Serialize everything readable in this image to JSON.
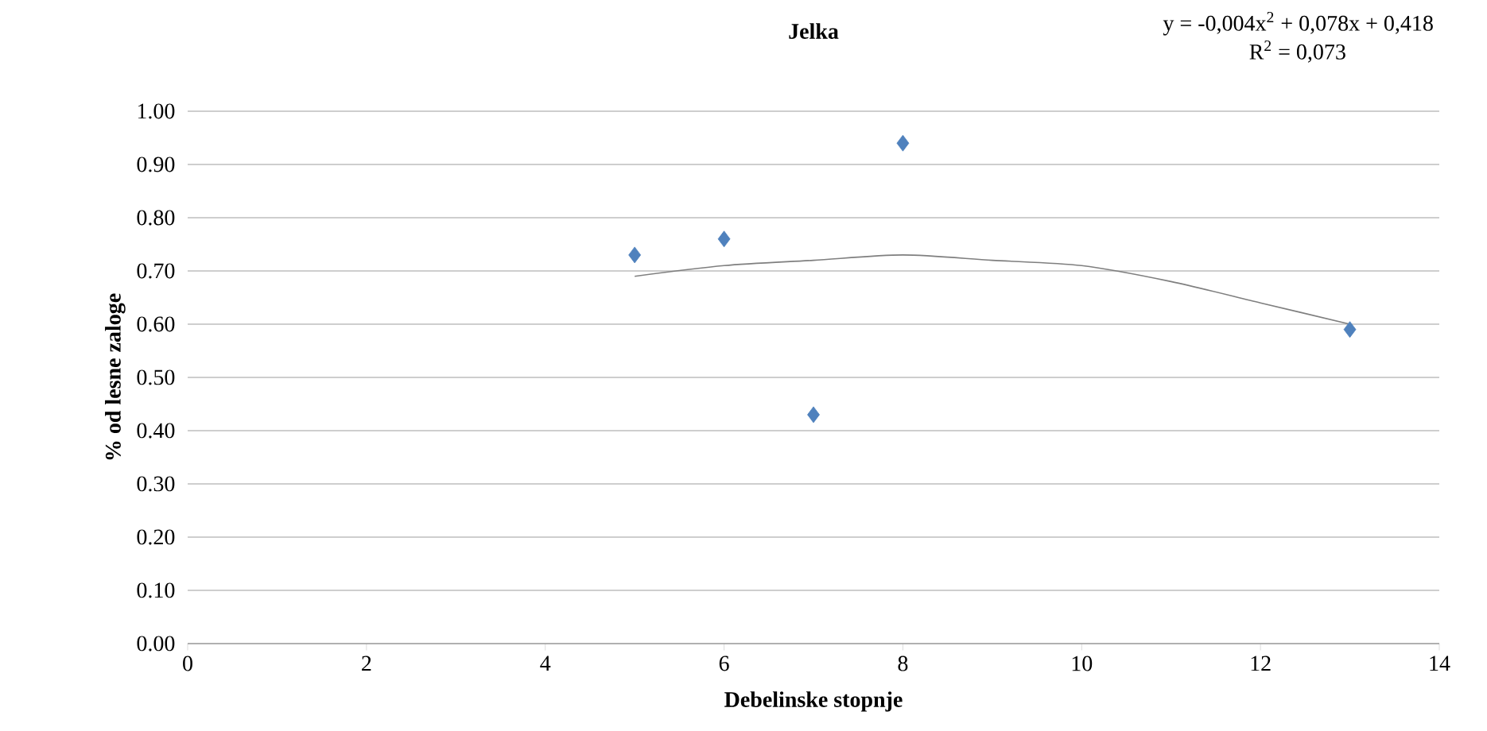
{
  "chart_data": {
    "type": "scatter",
    "title": "Jelka",
    "xlabel": "Debelinske stopnje",
    "ylabel": "% od lesne zaloge",
    "annotations": [
      "y = -0,004x$^{2}$ + 0,078x + 0,418",
      "R$^{2}$ = 0,073"
    ],
    "xlim": [
      0,
      14
    ],
    "xticks": [
      0,
      2,
      4,
      6,
      8,
      10,
      12,
      14
    ],
    "ylim": [
      0,
      1
    ],
    "yticks": [
      {
        "value": 0,
        "label": "0.00"
      },
      {
        "value": 0.1,
        "label": "0.10"
      },
      {
        "value": 0.2,
        "label": "0.20"
      },
      {
        "value": 0.3,
        "label": "0.30"
      },
      {
        "value": 0.4,
        "label": "0.40"
      },
      {
        "value": 0.5,
        "label": "0.50"
      },
      {
        "value": 0.6,
        "label": "0.60"
      },
      {
        "value": 0.7,
        "label": "0.70"
      },
      {
        "value": 0.8,
        "label": "0.80"
      },
      {
        "value": 0.9,
        "label": "0.90"
      },
      {
        "value": 1,
        "label": "1.00"
      }
    ],
    "grid": "y",
    "marker": "diamond",
    "series": [
      {
        "color": "#4f81bd",
        "x": [
          5,
          6,
          7,
          8,
          13
        ],
        "values": [
          0.73,
          0.76,
          0.43,
          0.94,
          0.59
        ]
      },
      {
        "type": "line",
        "marker": "none",
        "color": "#7f7f7f",
        "x": [
          5,
          6,
          7,
          8,
          9,
          10,
          11,
          12,
          13
        ],
        "values": [
          0.69,
          0.71,
          0.72,
          0.73,
          0.72,
          0.71,
          0.68,
          0.64,
          0.6
        ]
      }
    ]
  }
}
